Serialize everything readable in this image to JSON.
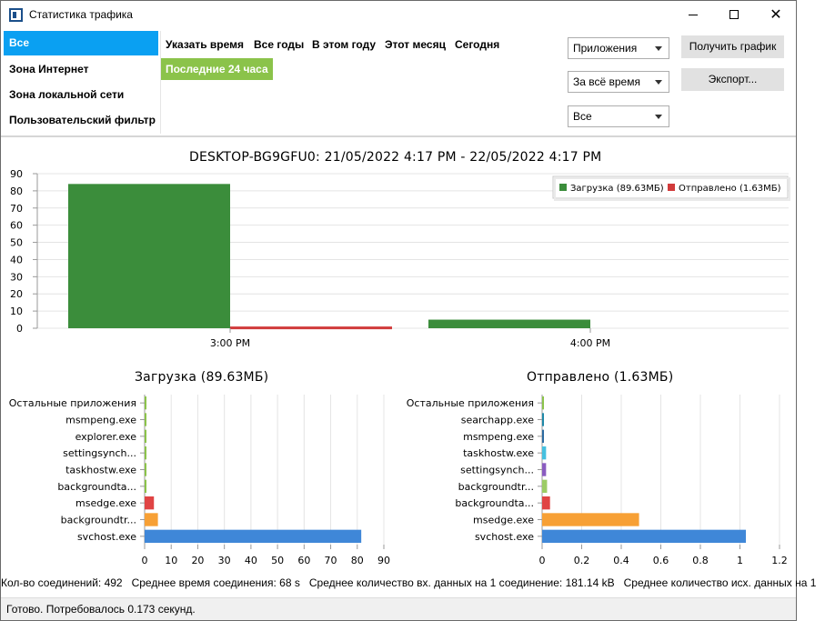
{
  "window": {
    "title": "Статистика трафика",
    "controls": {
      "minimize": "minimize-icon",
      "maximize": "maximize-icon",
      "close": "close-icon"
    }
  },
  "sidebar": {
    "items": [
      {
        "label": "Все",
        "active": true
      },
      {
        "label": "Зона Интернет",
        "active": false
      },
      {
        "label": "Зона локальной сети",
        "active": false
      },
      {
        "label": "Пользовательский фильтр",
        "active": false
      }
    ]
  },
  "filters": {
    "items": [
      {
        "label": "Указать время",
        "active": false
      },
      {
        "label": "Все годы",
        "active": false
      },
      {
        "label": "В этом году",
        "active": false
      },
      {
        "label": "Этот месяц",
        "active": false
      },
      {
        "label": "Сегодня",
        "active": false
      },
      {
        "label": "Последние 24 часа",
        "active": true
      }
    ]
  },
  "selects": {
    "group_by": "Приложения",
    "period": "За всё время",
    "scope": "Все"
  },
  "buttons": {
    "get_chart": "Получить график",
    "export": "Экспорт..."
  },
  "colors": {
    "accent": "#0aa0f2",
    "active_filter": "#8bc34a",
    "download": "#3b8d3b",
    "upload": "#d13b3b"
  },
  "chart_data": [
    {
      "type": "bar",
      "title": "DESKTOP-BG9GFU0: 21/05/2022 4:17 PM - 22/05/2022 4:17 PM",
      "categories": [
        "3:00 PM",
        "4:00 PM"
      ],
      "series": [
        {
          "name": "Загрузка (89.63МБ)",
          "values": [
            84,
            5
          ],
          "color": "#3b8d3b"
        },
        {
          "name": "Отправлено (1.63МБ)",
          "values": [
            1,
            0
          ],
          "color": "#d13b3b"
        }
      ],
      "ylim": [
        0,
        90
      ],
      "yticks": [
        0,
        10,
        20,
        30,
        40,
        50,
        60,
        70,
        80,
        90
      ],
      "xlabel": "",
      "ylabel": "",
      "grid": true,
      "legend": "top-right"
    },
    {
      "type": "bar",
      "orientation": "horizontal",
      "title": "Загрузка (89.63МБ)",
      "categories": [
        "Остальные приложения",
        "msmpeng.exe",
        "explorer.exe",
        "settingsynch...",
        "taskhostw.exe",
        "backgroundta...",
        "msedge.exe",
        "backgroundtr...",
        "svchost.exe"
      ],
      "values": [
        0,
        0,
        0,
        0,
        0,
        0,
        3.5,
        5,
        81.5
      ],
      "colors": [
        "#8bc34a",
        "#8bc34a",
        "#8bc34a",
        "#8bc34a",
        "#8bc34a",
        "#8bc34a",
        "#e04444",
        "#f7a035",
        "#3f87d8"
      ],
      "xlim": [
        0,
        90
      ],
      "xticks": [
        0,
        10,
        20,
        30,
        40,
        50,
        60,
        70,
        80,
        90
      ],
      "grid": true
    },
    {
      "type": "bar",
      "orientation": "horizontal",
      "title": "Отправлено (1.63МБ)",
      "categories": [
        "Остальные приложения",
        "searchapp.exe",
        "msmpeng.exe",
        "taskhostw.exe",
        "settingsynch...",
        "backgroundtr...",
        "backgroundta...",
        "msedge.exe",
        "svchost.exe"
      ],
      "values": [
        0.005,
        0.005,
        0.005,
        0.02,
        0.02,
        0.025,
        0.04,
        0.49,
        1.03
      ],
      "colors": [
        "#8bc34a",
        "#1e88a8",
        "#2c6aa0",
        "#45c0e0",
        "#8a5cc0",
        "#9ccc65",
        "#e04444",
        "#f7a035",
        "#3f87d8"
      ],
      "xlim": [
        0,
        1.2
      ],
      "xticks": [
        "0",
        "0.2",
        "0.4",
        "0.6",
        "0.8",
        "1",
        "1.2"
      ],
      "grid": true
    }
  ],
  "stats": {
    "connections": "Кол-во соединений: 492",
    "avg_time": "Среднее время соединения: 68 s",
    "avg_in": "Среднее количество вх. данных на 1 соединение: 181.14 kB",
    "avg_out": "Среднее количество исх. данных на 1"
  },
  "status": {
    "text": "Готово. Потребовалось 0.173 секунд."
  }
}
